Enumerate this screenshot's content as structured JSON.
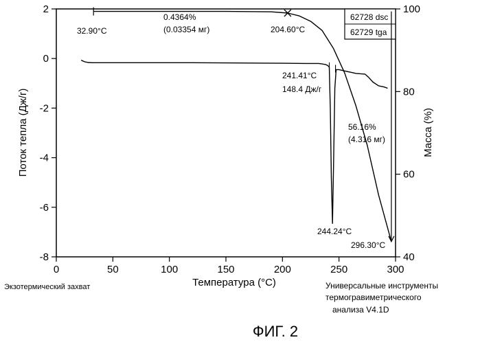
{
  "chart_data": {
    "type": "line",
    "xlabel": "Температура (°C)",
    "ylabel_left": "Поток тепла (Дж/г)",
    "ylabel_right": "Масса (%)",
    "xlim": [
      0,
      300
    ],
    "ylim_left": [
      -8,
      2
    ],
    "ylim_right": [
      40,
      100
    ],
    "x_ticks": [
      0,
      50,
      100,
      150,
      200,
      250,
      300
    ],
    "y_ticks_left": [
      2,
      0,
      -2,
      -4,
      -6,
      -8
    ],
    "y_ticks_right": [
      100,
      80,
      60,
      40
    ],
    "grid": false,
    "legend_box": [
      "62728 dsc",
      "62729 tga"
    ],
    "series": [
      {
        "axis": "left",
        "x": [
          22,
          25,
          28,
          32,
          50,
          80,
          120,
          160,
          200,
          220,
          232,
          235,
          238,
          240,
          241.4,
          242.3,
          243.2,
          244.24,
          245.2,
          246.3,
          247.5,
          250,
          255,
          260,
          265,
          270,
          273,
          276,
          280,
          285,
          290,
          293
        ],
        "y": [
          -0.07,
          -0.13,
          -0.16,
          -0.17,
          -0.17,
          -0.17,
          -0.17,
          -0.18,
          -0.19,
          -0.2,
          -0.2,
          -0.22,
          -0.24,
          -0.28,
          -0.35,
          -2.0,
          -4.8,
          -6.65,
          -4.2,
          -1.2,
          -0.45,
          -0.45,
          -0.5,
          -0.55,
          -0.6,
          -0.62,
          -0.63,
          -0.75,
          -0.95,
          -1.1,
          -1.15,
          -1.2
        ]
      },
      {
        "axis": "right",
        "x": [
          32.9,
          60,
          100,
          150,
          190,
          204.6,
          215,
          225,
          235,
          245,
          255,
          265,
          275,
          285,
          296.3
        ],
        "y": [
          99.4,
          99.4,
          99.4,
          99.4,
          99.3,
          99.0,
          98.3,
          97.0,
          94.8,
          90.5,
          84.5,
          76.5,
          67.0,
          55.0,
          43.7
        ]
      }
    ],
    "annotations": {
      "start_temp": "32.90°C",
      "loss_pct": "0.4364%",
      "loss_mass": "(0.03354 мг)",
      "onset_tga": "204.60°C",
      "onset_dsc": "241.41°C",
      "enthalpy": "148.4 Дж/г",
      "peak": "244.24°C",
      "main_loss_pct": "56.16%",
      "main_loss_mass": "(4.316 мг)",
      "end_temp": "296.30°C"
    },
    "footer": {
      "left": "Экзотермический захват",
      "right_line1": "Универсальные инструменты",
      "right_line2": "термогравиметрического",
      "right_line3": "анализа  V4.1D"
    },
    "figure_label": "ФИГ. 2"
  }
}
